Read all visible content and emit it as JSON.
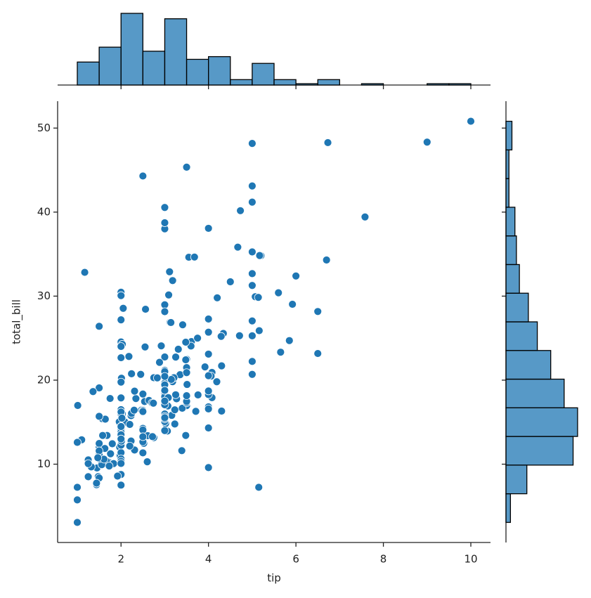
{
  "chart_data": [
    {
      "type": "scatter",
      "xlabel": "tip",
      "ylabel": "total_bill",
      "color": "#1f77b4",
      "x": [
        1.01,
        1.66,
        3.5,
        3.31,
        3.61,
        4.71,
        2.0,
        3.12,
        1.96,
        3.23,
        1.71,
        5.0,
        1.57,
        3.0,
        3.02,
        3.92,
        1.67,
        3.71,
        3.5,
        3.35,
        4.08,
        2.75,
        2.23,
        7.58,
        3.18,
        2.34,
        2.0,
        2.0,
        4.3,
        3.0,
        1.45,
        2.5,
        3.0,
        2.45,
        3.27,
        3.6,
        2.0,
        3.07,
        2.31,
        5.0,
        2.24,
        2.54,
        3.06,
        1.32,
        5.6,
        3.0,
        5.0,
        6.0,
        2.05,
        3.0,
        2.5,
        2.6,
        5.2,
        1.56,
        4.34,
        3.51,
        3.0,
        1.5,
        1.76,
        6.73,
        3.21,
        2.0,
        1.98,
        3.76,
        2.64,
        3.15,
        2.47,
        1.0,
        2.01,
        2.09,
        1.97,
        3.0,
        3.14,
        5.0,
        2.2,
        1.25,
        3.08,
        4.0,
        3.0,
        2.71,
        3.0,
        3.4,
        1.83,
        5.0,
        2.03,
        5.17,
        2.0,
        4.0,
        5.85,
        3.0,
        3.0,
        3.5,
        1.0,
        4.3,
        3.25,
        4.73,
        4.0,
        1.5,
        3.0,
        1.5,
        2.5,
        3.0,
        2.5,
        3.48,
        4.08,
        1.64,
        4.06,
        4.29,
        3.76,
        4.0,
        3.0,
        1.0,
        4.0,
        2.55,
        4.0,
        3.5,
        5.07,
        1.5,
        1.8,
        2.92,
        2.31,
        1.68,
        2.5,
        2.0,
        2.52,
        4.2,
        1.48,
        2.0,
        2.0,
        2.18,
        1.5,
        2.83,
        1.5,
        2.0,
        3.25,
        1.25,
        2.0,
        2.0,
        2.0,
        2.75,
        3.5,
        6.7,
        5.0,
        5.0,
        2.3,
        1.5,
        1.36,
        1.63,
        1.73,
        2.0,
        2.5,
        2.0,
        2.74,
        2.0,
        2.0,
        5.14,
        5.0,
        3.75,
        2.61,
        2.0,
        3.5,
        2.5,
        2.0,
        2.0,
        3.0,
        3.48,
        2.24,
        4.5,
        1.61,
        2.0,
        10.0,
        3.16,
        5.15,
        3.18,
        4.0,
        3.11,
        2.0,
        2.0,
        4.0,
        3.55,
        3.68,
        5.65,
        3.5,
        6.5,
        3.0,
        5.0,
        3.5,
        2.0,
        3.5,
        4.0,
        1.5,
        4.19,
        2.56,
        2.02,
        4.0,
        1.44,
        2.0,
        5.0,
        2.0,
        2.0,
        4.0,
        2.01,
        2.0,
        2.5,
        4.0,
        3.23,
        3.41,
        3.0,
        2.03,
        2.23,
        2.0,
        5.16,
        9.0,
        2.5,
        6.5,
        1.1,
        3.0,
        1.5,
        1.44,
        3.09,
        2.2,
        3.48,
        1.92,
        3.0,
        1.58,
        2.5,
        2.0,
        3.0,
        2.72,
        2.88,
        2.0,
        3.0,
        3.39,
        1.47,
        3.0,
        1.25,
        1.0,
        1.17,
        4.67,
        5.92,
        2.0,
        2.0,
        1.75,
        3.0
      ],
      "values": [
        16.99,
        10.34,
        21.01,
        23.68,
        24.59,
        25.29,
        8.77,
        26.88,
        15.04,
        14.78,
        10.27,
        35.26,
        15.42,
        18.43,
        14.83,
        21.58,
        10.33,
        16.29,
        16.97,
        20.65,
        17.92,
        20.29,
        15.77,
        39.42,
        19.82,
        17.81,
        13.37,
        12.69,
        21.7,
        19.65,
        9.55,
        18.35,
        15.06,
        20.69,
        17.78,
        24.06,
        16.31,
        16.93,
        18.69,
        31.27,
        16.04,
        17.46,
        13.94,
        9.68,
        30.4,
        18.29,
        22.23,
        32.4,
        28.55,
        18.04,
        12.54,
        10.29,
        34.81,
        9.94,
        25.56,
        19.49,
        38.01,
        26.41,
        11.24,
        48.27,
        20.29,
        13.81,
        11.02,
        18.29,
        17.59,
        20.08,
        16.45,
        3.07,
        20.23,
        15.01,
        12.02,
        17.07,
        26.86,
        25.28,
        14.73,
        10.51,
        17.92,
        27.2,
        22.76,
        17.29,
        19.44,
        16.66,
        10.07,
        32.68,
        15.98,
        34.83,
        13.03,
        18.28,
        24.71,
        21.16,
        28.97,
        22.49,
        5.75,
        16.32,
        22.75,
        40.17,
        27.28,
        12.03,
        21.01,
        12.46,
        11.35,
        15.38,
        44.3,
        22.42,
        20.92,
        15.36,
        20.49,
        25.21,
        18.24,
        14.31,
        14.0,
        7.25,
        38.07,
        23.95,
        25.71,
        17.31,
        29.93,
        10.65,
        12.43,
        24.08,
        11.69,
        13.42,
        14.26,
        15.95,
        12.48,
        29.8,
        8.52,
        14.52,
        11.38,
        22.82,
        19.08,
        20.27,
        11.17,
        12.26,
        18.26,
        8.51,
        10.33,
        14.15,
        16.0,
        13.16,
        17.47,
        34.3,
        41.19,
        27.05,
        16.43,
        8.35,
        18.64,
        11.87,
        9.78,
        7.51,
        14.07,
        13.13,
        17.26,
        24.55,
        19.77,
        29.85,
        48.17,
        25.0,
        13.39,
        16.49,
        21.5,
        12.66,
        16.21,
        13.81,
        17.51,
        24.52,
        20.76,
        31.71,
        10.59,
        10.63,
        50.81,
        15.81,
        7.25,
        31.85,
        16.82,
        32.9,
        17.89,
        14.48,
        9.6,
        34.63,
        34.65,
        23.33,
        45.35,
        23.17,
        40.55,
        20.69,
        20.9,
        30.46,
        18.15,
        23.1,
        15.69,
        19.81,
        28.44,
        15.48,
        16.58,
        7.56,
        10.34,
        43.11,
        13.0,
        13.51,
        18.71,
        12.74,
        13.0,
        16.4,
        20.53,
        16.47,
        26.59,
        38.73,
        24.27,
        12.76,
        30.06,
        25.89,
        48.33,
        13.27,
        28.17,
        12.9,
        28.15,
        11.59,
        7.74,
        30.14,
        12.16,
        13.42,
        8.58,
        15.98,
        13.42,
        16.27,
        10.09,
        20.45,
        13.28,
        22.12,
        24.01,
        15.69,
        11.61,
        10.77,
        15.53,
        10.07,
        12.6,
        32.83,
        35.83,
        29.03,
        27.18,
        22.67,
        17.82,
        18.78
      ],
      "xlim": [
        0.55,
        10.45
      ],
      "ylim": [
        0.68,
        53.2
      ],
      "xticks": [
        2,
        4,
        6,
        8,
        10
      ],
      "yticks": [
        10,
        20,
        30,
        40,
        50
      ]
    },
    {
      "type": "histogram",
      "orientation": "vertical",
      "color": "#1f77b4",
      "alpha": 0.75,
      "bins": [
        1,
        1.5,
        2,
        2.5,
        3,
        3.5,
        4,
        4.5,
        5,
        5.5,
        6,
        6.5,
        7,
        7.5,
        8,
        8.5,
        9,
        9.5,
        10
      ],
      "values": [
        17,
        28,
        53,
        25,
        49,
        19,
        21,
        4,
        16,
        4,
        1,
        4,
        0,
        1,
        0,
        0,
        1,
        1
      ],
      "ylim": [
        0,
        55.6
      ]
    },
    {
      "type": "histogram",
      "orientation": "horizontal",
      "color": "#1f77b4",
      "alpha": 0.75,
      "bins": [
        3.07,
        6.48,
        9.89,
        13.3,
        16.71,
        20.12,
        23.53,
        26.94,
        30.35,
        33.76,
        37.17,
        40.58,
        43.99,
        47.4,
        50.81
      ],
      "values": [
        3,
        14,
        45,
        48,
        39,
        30,
        21,
        15,
        9,
        7,
        6,
        2,
        2,
        4
      ],
      "xlim": [
        0,
        50.4
      ]
    }
  ]
}
